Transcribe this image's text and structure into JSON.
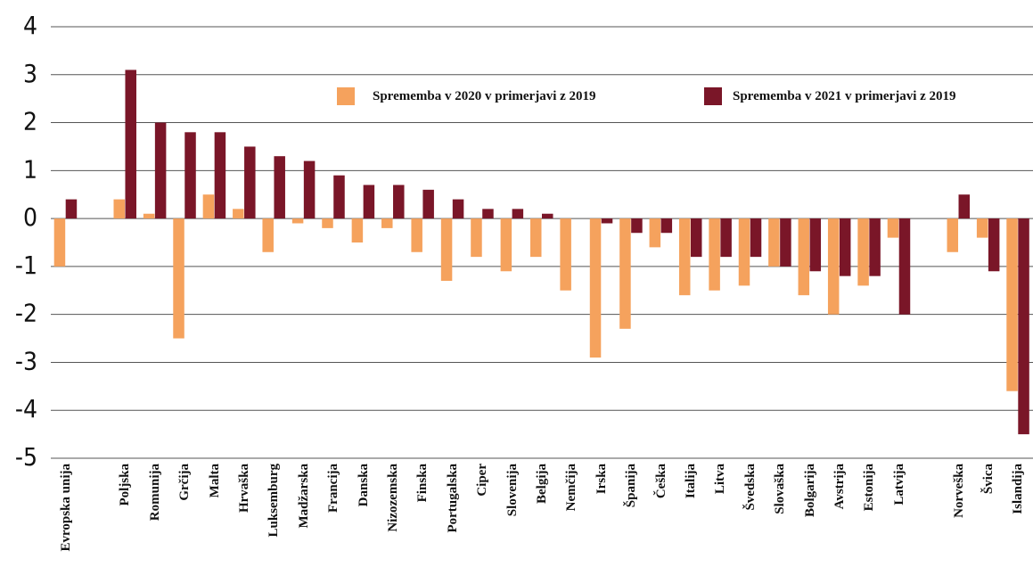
{
  "chart_data": {
    "type": "bar",
    "categories": [
      "Evropska unija",
      null,
      "Poljska",
      "Romunija",
      "Grčija",
      "Malta",
      "Hrvaška",
      "Luksemburg",
      "Madžarska",
      "Francija",
      "Danska",
      "Nizozemska",
      "Finska",
      "Portugalska",
      "Ciper",
      "Slovenija",
      "Belgija",
      "Nemčija",
      "Irska",
      "Španija",
      "Češka",
      "Italija",
      "Litva",
      "Švedska",
      "Slovaška",
      "Bolgarija",
      "Avstrija",
      "Estonija",
      "Latvija",
      null,
      "Norveška",
      "Švica",
      "Islandija"
    ],
    "series": [
      {
        "name": "Sprememba v 2020 v primerjavi z 2019",
        "color": "#f5a25d",
        "values": [
          -1,
          null,
          0.4,
          0.1,
          -2.5,
          0.5,
          0.2,
          -0.7,
          -0.1,
          -0.2,
          -0.5,
          -0.2,
          -0.7,
          -1.3,
          -0.8,
          -1.1,
          -0.8,
          -1.5,
          -2.9,
          -2.3,
          -0.6,
          -1.6,
          -1.5,
          -1.4,
          -1.0,
          -1.6,
          -2.0,
          -1.4,
          -0.4,
          null,
          -0.7,
          -0.4,
          -3.6
        ]
      },
      {
        "name": "Sprememba v 2021 v primerjavi z 2019",
        "color": "#7a1628",
        "values": [
          0.4,
          null,
          3.1,
          2.0,
          1.8,
          1.8,
          1.5,
          1.3,
          1.2,
          0.9,
          0.7,
          0.7,
          0.6,
          0.4,
          0.2,
          0.2,
          0.1,
          0,
          -0.1,
          -0.3,
          -0.3,
          -0.8,
          -0.8,
          -0.8,
          -1.0,
          -1.1,
          -1.2,
          -1.2,
          -2.0,
          null,
          0.5,
          -1.1,
          -4.5
        ]
      }
    ],
    "ylim": [
      -5,
      4
    ],
    "yticks": [
      -5,
      -4,
      -3,
      -2,
      -1,
      0,
      1,
      2,
      3,
      4
    ],
    "grid": true,
    "legend": "top"
  }
}
